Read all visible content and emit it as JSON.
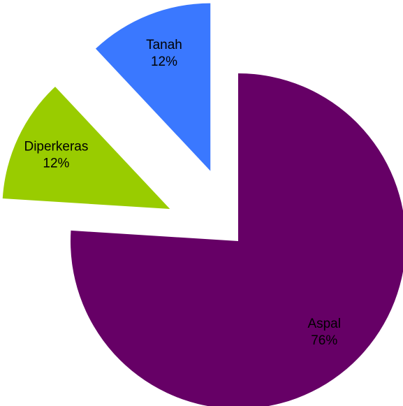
{
  "chart_data": {
    "type": "pie",
    "categories": [
      "Aspal",
      "Diperkeras",
      "Tanah"
    ],
    "values": [
      76,
      12,
      12
    ],
    "value_labels": [
      "76%",
      "12%",
      "12%"
    ],
    "colors": [
      "#660066",
      "#99cc00",
      "#3a78ff"
    ]
  }
}
